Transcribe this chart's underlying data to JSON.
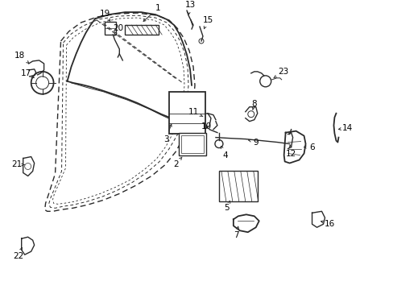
{
  "background_color": "#ffffff",
  "line_color": "#2a2a2a",
  "label_color": "#000000",
  "fig_width": 4.89,
  "fig_height": 3.6,
  "dpi": 100
}
